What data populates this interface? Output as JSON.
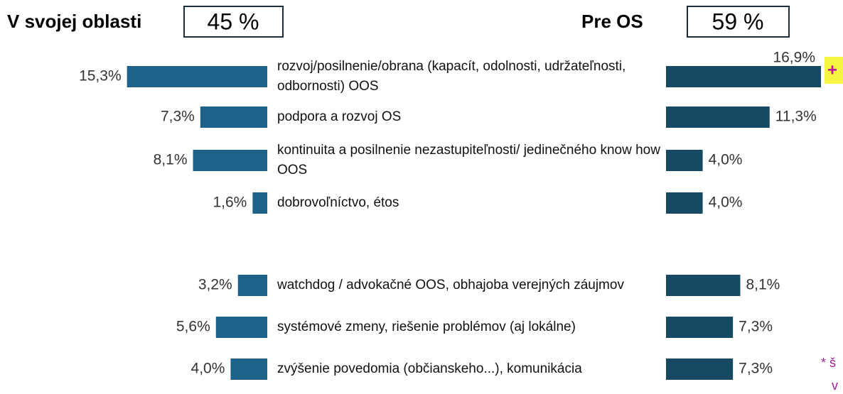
{
  "chart_data": {
    "type": "bar",
    "orientation": "horizontal",
    "categories": [
      "rozvoj/posilnenie/obrana (kapacít, odolnosti, udržateľnosti, odbornosti) OOS",
      "podpora a rozvoj OS",
      "kontinuita a posilnenie nezastupiteľnosti/ jedinečného know how OOS",
      "dobrovoľníctvo, étos",
      "watchdog / advokačné OOS, obhajoba verejných záujmov",
      "systémové zmeny, riešenie problémov (aj lokálne)",
      "zvýšenie povedomia (občianskeho...), komunikácia"
    ],
    "series": [
      {
        "name": "V svojej oblasti",
        "total": 45,
        "total_label": "45 %",
        "color": "#1f6289",
        "values": [
          15.3,
          7.3,
          8.1,
          1.6,
          3.2,
          5.6,
          4.0
        ],
        "value_labels": [
          "15,3%",
          "7,3%",
          "8,1%",
          "1,6%",
          "3,2%",
          "5,6%",
          "4,0%"
        ]
      },
      {
        "name": "Pre OS",
        "total": 59,
        "total_label": "59 %",
        "color": "#164a64",
        "values": [
          16.9,
          11.3,
          4.0,
          4.0,
          8.1,
          7.3,
          7.3
        ],
        "value_labels": [
          "16,9%",
          "11,3%",
          "4,0%",
          "4,0%",
          "8,1%",
          "7,3%",
          "7,3%"
        ]
      }
    ],
    "annotations": [
      "+",
      "* š",
      "v"
    ]
  }
}
